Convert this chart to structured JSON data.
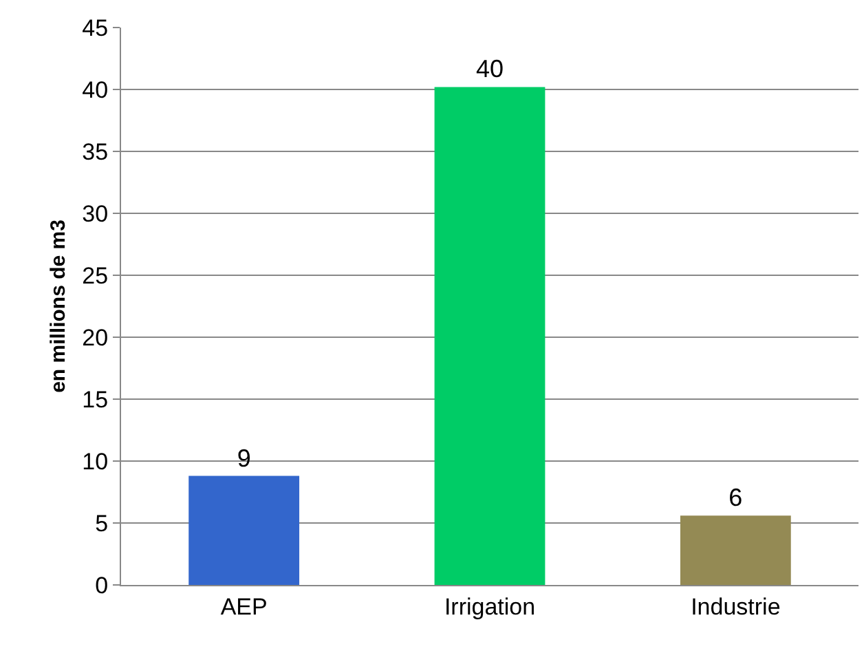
{
  "chart_data": {
    "type": "bar",
    "ylabel": "en millions de m3",
    "categories": [
      "AEP",
      "Irrigation",
      "Industrie"
    ],
    "values": [
      8.8,
      40.2,
      5.6
    ],
    "colors": [
      "#3366cc",
      "#00cc66",
      "#948a54"
    ],
    "value_labels": [
      "9",
      "40",
      "6"
    ],
    "ylim": [
      0,
      45
    ],
    "yticks": [
      0,
      5,
      10,
      15,
      20,
      25,
      30,
      35,
      40,
      45
    ],
    "grid": "y",
    "legend": false
  }
}
